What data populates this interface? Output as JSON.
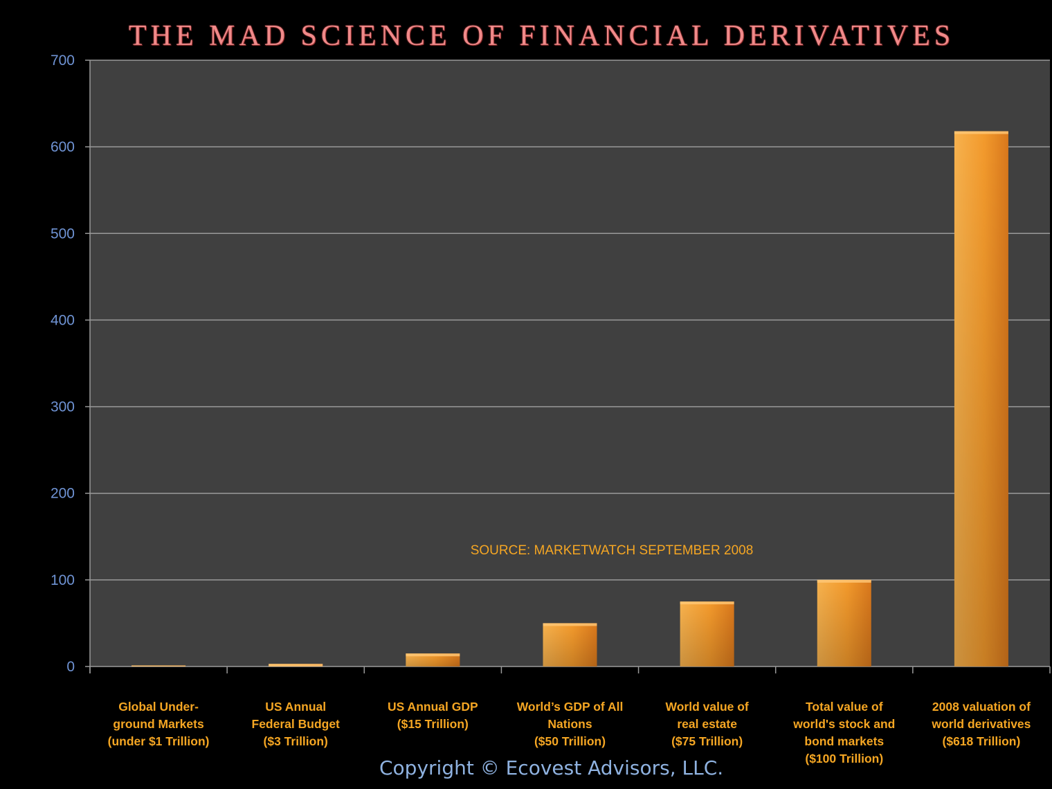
{
  "chart_data": {
    "type": "bar",
    "title": "THE MAD SCIENCE OF FINANCIAL DERIVATIVES",
    "categories": [
      "Global Under-\nground Markets\n(under $1 Trillion)",
      "US Annual\nFederal Budget\n($3 Trillion)",
      "US Annual GDP\n($15 Trillion)",
      "World’s GDP of All\nNations\n($50 Trillion)",
      "World value of\nreal estate\n($75 Trillion)",
      "Total value of\nworld's stock and\nbond markets\n($100 Trillion)",
      "2008 valuation of\nworld derivatives\n($618 Trillion)"
    ],
    "values": [
      1,
      3,
      15,
      50,
      75,
      100,
      618
    ],
    "ylim": [
      0,
      700
    ],
    "yticks": [
      0,
      100,
      200,
      300,
      400,
      500,
      600,
      700
    ],
    "ytick_labels": [
      "0",
      "100",
      "200",
      "300",
      "400",
      "500",
      "600",
      "700"
    ],
    "grid": true,
    "legend": "none",
    "annotation": "SOURCE: MARKETWATCH SEPTEMBER 2008",
    "colors": {
      "bar": "#f39a2c",
      "plot_background": "#404040",
      "grid": "#9a9a9a",
      "title": "#f08a8a",
      "tick_labels": "#6f93d4",
      "category_labels": "#f5a623"
    }
  },
  "footer": {
    "copyright": "Copyright © Ecovest Advisors, LLC."
  }
}
